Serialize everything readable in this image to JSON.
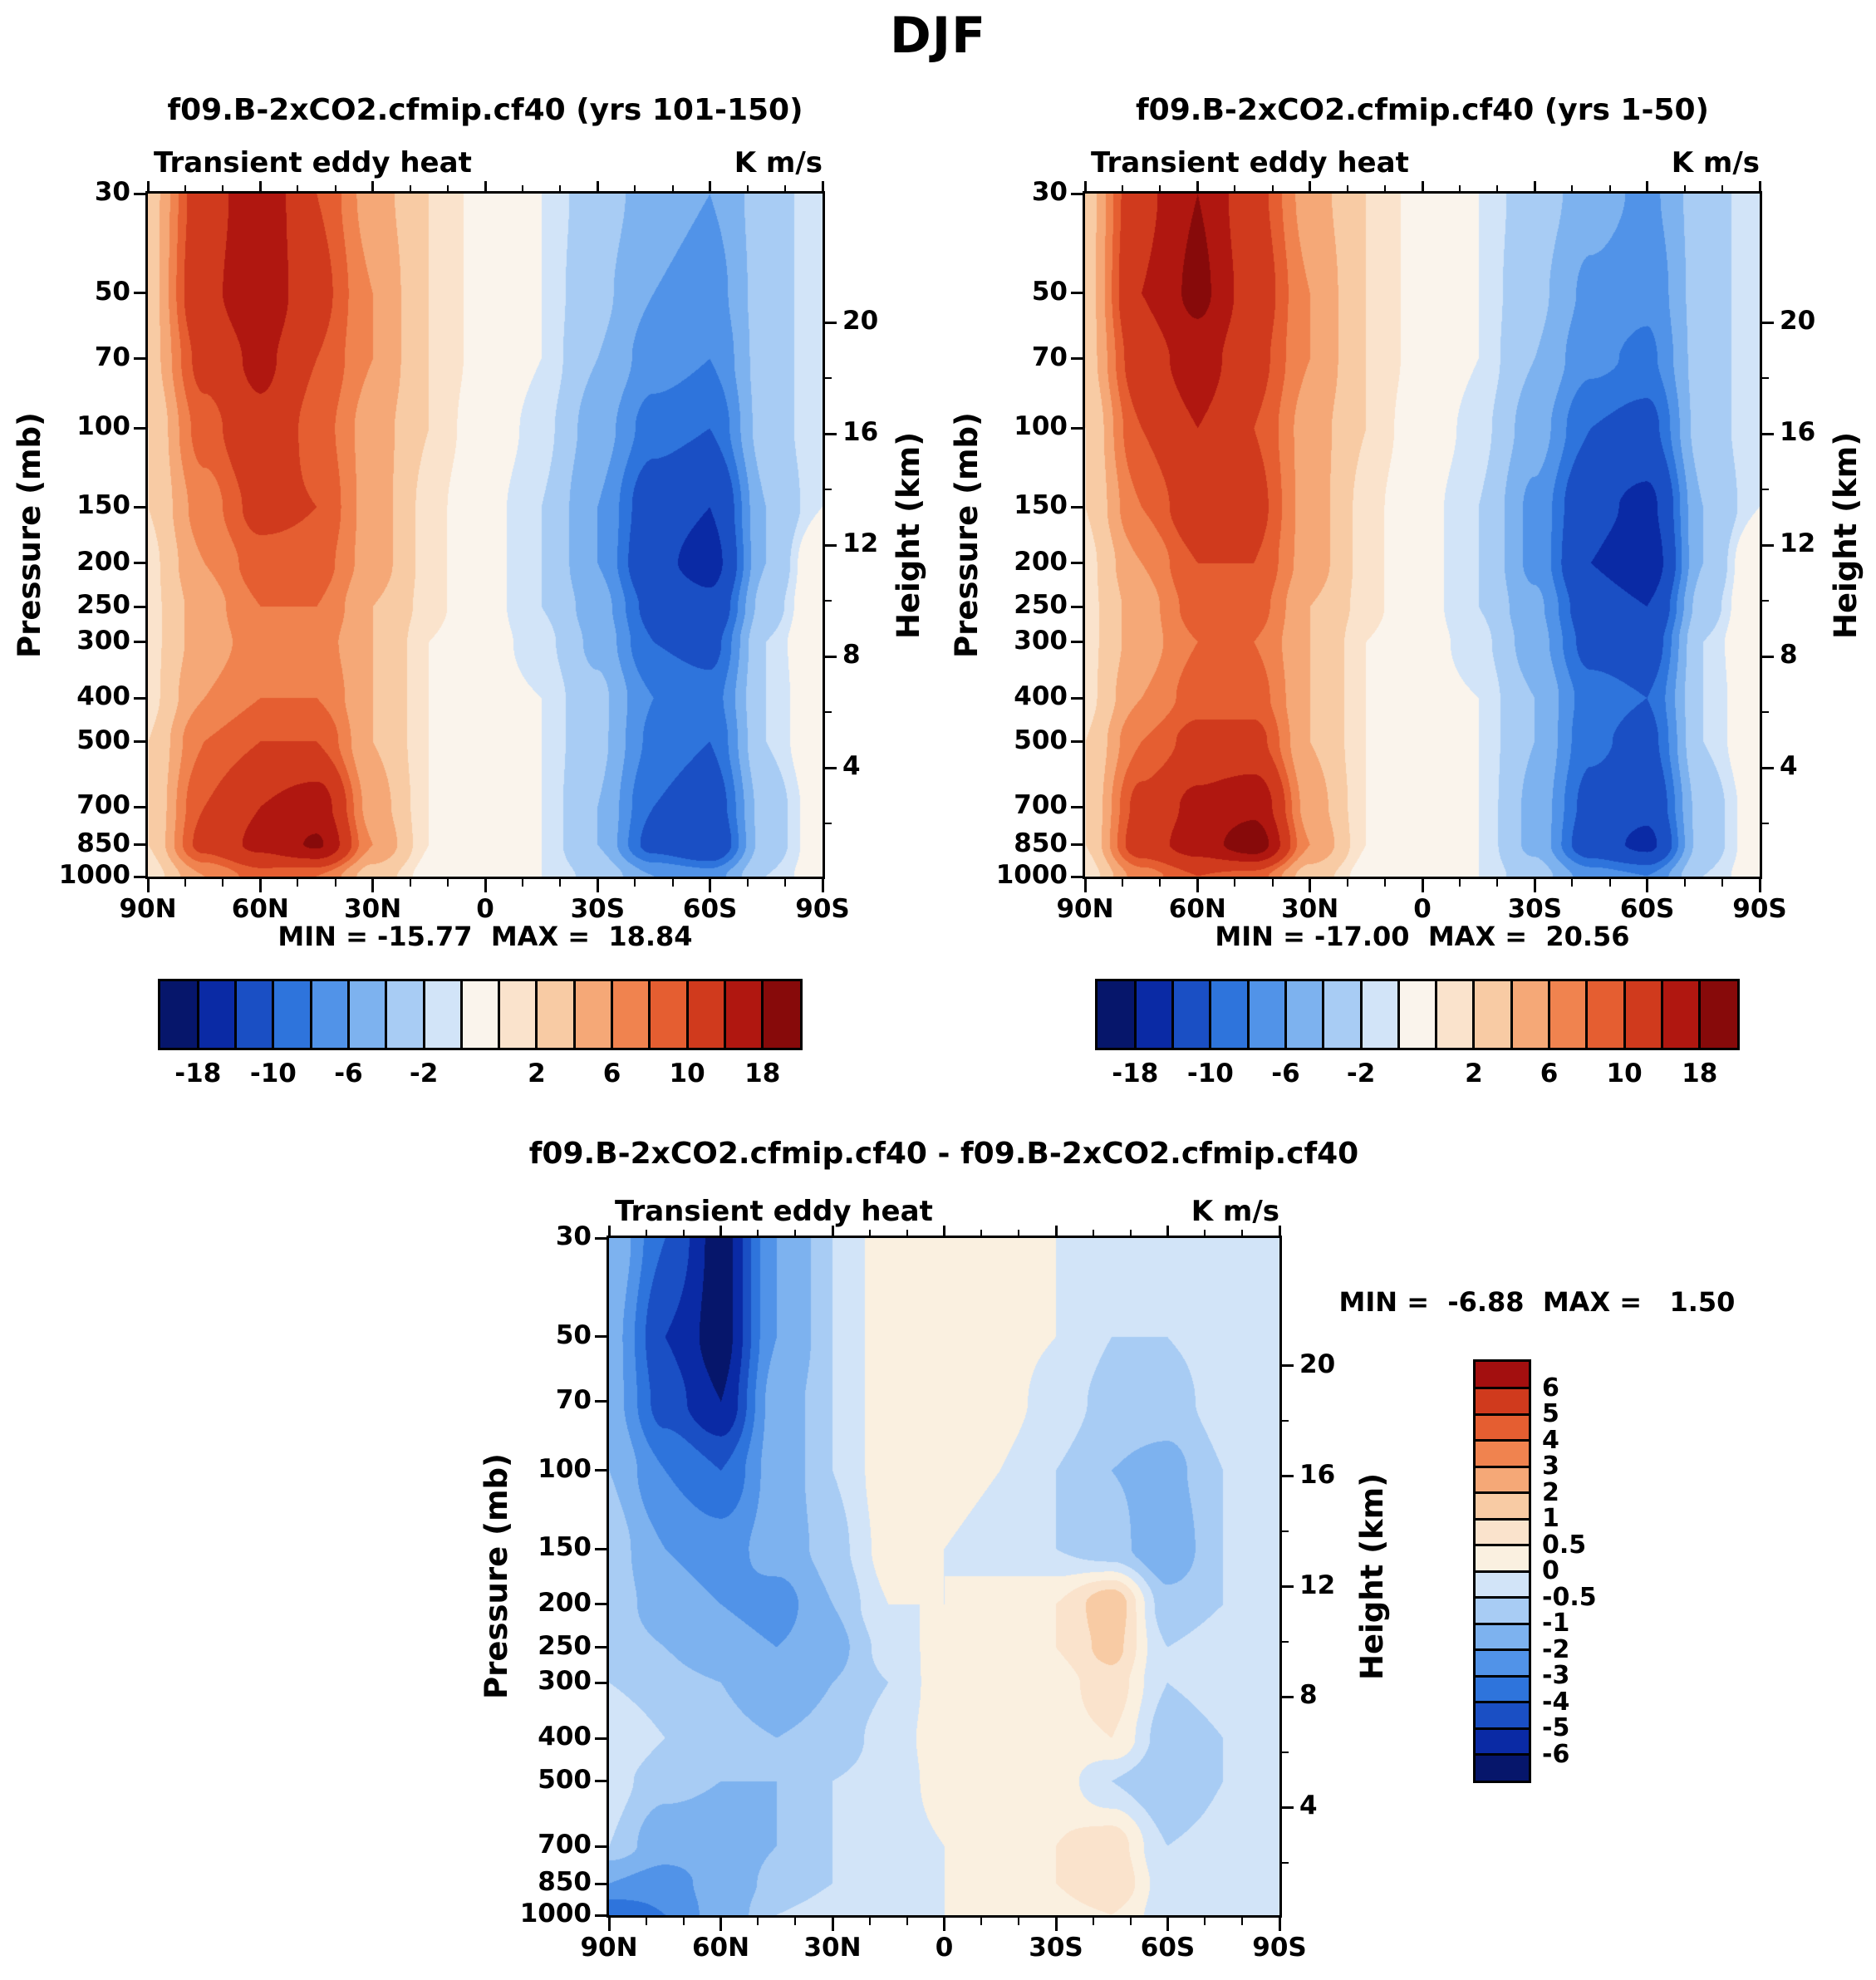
{
  "page": {
    "title": "DJF"
  },
  "panels": [
    {
      "title": "f09.B-2xCO2.cfmip.cf40 (yrs 101-150)",
      "field_label": "Transient eddy heat",
      "units": "K m/s",
      "stats": "MIN = -15.77  MAX =  18.84"
    },
    {
      "title": "f09.B-2xCO2.cfmip.cf40 (yrs 1-50)",
      "field_label": "Transient eddy heat",
      "units": "K m/s",
      "stats": "MIN = -17.00  MAX =  20.56"
    },
    {
      "title": "f09.B-2xCO2.cfmip.cf40 - f09.B-2xCO2.cfmip.cf40",
      "field_label": "Transient eddy heat",
      "units": "K m/s",
      "stats": "MIN =  -6.88  MAX =   1.50"
    }
  ],
  "axes": {
    "pressure_label": "Pressure (mb)",
    "height_label": "Height (km)",
    "pressure_ticks": [
      30,
      50,
      70,
      100,
      150,
      200,
      250,
      300,
      400,
      500,
      700,
      850,
      1000
    ],
    "height_ticks": [
      20,
      16,
      12,
      8,
      4
    ],
    "height_minor_ticks": [
      18,
      14,
      10,
      6,
      2
    ],
    "lat_tick_labels": [
      "90N",
      "60N",
      "30N",
      "0",
      "30S",
      "60S",
      "90S"
    ],
    "lat_tick_values": [
      90,
      60,
      30,
      0,
      -30,
      -60,
      -90
    ]
  },
  "palettes": {
    "main": {
      "levels": [
        -18,
        -14,
        -10,
        -8,
        -6,
        -4,
        -2,
        -1,
        1,
        2,
        4,
        6,
        8,
        10,
        14,
        18
      ],
      "colors": [
        "#06166B",
        "#0A2AA5",
        "#1A4FC4",
        "#2E74DC",
        "#5193E8",
        "#7DB2EF",
        "#A8CCF4",
        "#D2E4F8",
        "#FAF4EC",
        "#FAE3CC",
        "#F8CBA4",
        "#F5A877",
        "#F0834F",
        "#E55E31",
        "#D03A1D",
        "#B01710",
        "#870A0A"
      ],
      "bar_labels": [
        "-18",
        "-10",
        "-6",
        "-2",
        "2",
        "6",
        "10",
        "18"
      ],
      "bar_label_cells": [
        1,
        3,
        5,
        7,
        10,
        12,
        14,
        16
      ]
    },
    "diff": {
      "levels": [
        -6,
        -5,
        -4,
        -3,
        -2,
        -1,
        -0.5,
        0,
        0.5,
        1,
        2,
        3,
        4,
        5,
        6
      ],
      "colors": [
        "#06166B",
        "#0A2AA5",
        "#1A4FC4",
        "#2E74DC",
        "#5193E8",
        "#7DB2EF",
        "#A8CCF4",
        "#D2E4F8",
        "#FAF0E0",
        "#FAE3CC",
        "#F8CBA4",
        "#F5A877",
        "#F0834F",
        "#E55E31",
        "#D03A1D",
        "#A30F0F"
      ],
      "bar_labels": [
        "6",
        "5",
        "4",
        "3",
        "2",
        "1",
        "0.5",
        "0",
        "-0.5",
        "-1",
        "-2",
        "-3",
        "-4",
        "-5",
        "-6"
      ]
    }
  },
  "chart_data": [
    {
      "type": "heatmap",
      "title": "f09.B-2xCO2.cfmip.cf40 (yrs 101-150)",
      "field": "Transient eddy heat",
      "units": "K m/s",
      "min": -15.77,
      "max": 18.84,
      "palette": "main",
      "x_lats": [
        90,
        75,
        60,
        45,
        30,
        15,
        0,
        -15,
        -30,
        -45,
        -60,
        -75,
        -90
      ],
      "y_pressure_mb": [
        30,
        50,
        70,
        100,
        150,
        200,
        250,
        300,
        400,
        500,
        700,
        850,
        1000
      ],
      "values": [
        [
          3,
          12,
          17,
          10,
          5,
          2,
          0.5,
          -1,
          -3,
          -5,
          -6,
          -3,
          -1
        ],
        [
          3,
          13,
          17,
          11,
          6,
          2,
          0.5,
          -1,
          -3.5,
          -6,
          -7,
          -3,
          -1
        ],
        [
          3,
          11,
          15,
          10,
          6,
          2,
          0.5,
          -1,
          -4,
          -7,
          -8,
          -3,
          -1
        ],
        [
          2,
          9,
          13,
          9,
          5,
          2,
          0,
          -1.5,
          -5,
          -9,
          -10,
          -3,
          -1
        ],
        [
          2,
          7,
          11,
          10,
          5,
          1.5,
          -0.5,
          -2,
          -6,
          -12,
          -14,
          -4,
          -1
        ],
        [
          1.5,
          6,
          9,
          9,
          5,
          1.5,
          -0.5,
          -2,
          -6,
          -13,
          -15.5,
          -4,
          1
        ],
        [
          1.5,
          5,
          8,
          8,
          4,
          1.5,
          -0.5,
          -2,
          -5,
          -11,
          -13,
          -3,
          1
        ],
        [
          1.5,
          5,
          7,
          7,
          4,
          1,
          -0.5,
          -1.5,
          -4.5,
          -10,
          -11,
          -2,
          1
        ],
        [
          1.5,
          6,
          8,
          8,
          4,
          1,
          -0.5,
          -1,
          -3.5,
          -8,
          -9,
          -2,
          0.5
        ],
        [
          2,
          8,
          10,
          10,
          4,
          1,
          -0.5,
          -1,
          -3.5,
          -8.5,
          -10,
          -2,
          0.5
        ],
        [
          2,
          10,
          14,
          16,
          5,
          1,
          -0.5,
          -1,
          -4,
          -10,
          -12,
          -3,
          0
        ],
        [
          2,
          11,
          15,
          18.5,
          6,
          1,
          -0.5,
          -1,
          -4,
          -11,
          -13.5,
          -3,
          0
        ],
        [
          1,
          6,
          9,
          8,
          3,
          0.5,
          -0.5,
          -1,
          -2.5,
          -6,
          -7,
          -2,
          0
        ]
      ]
    },
    {
      "type": "heatmap",
      "title": "f09.B-2xCO2.cfmip.cf40 (yrs 1-50)",
      "field": "Transient eddy heat",
      "units": "K m/s",
      "min": -17.0,
      "max": 20.56,
      "palette": "main",
      "x_lats": [
        90,
        75,
        60,
        45,
        30,
        15,
        0,
        -15,
        -30,
        -45,
        -60,
        -75,
        -90
      ],
      "y_pressure_mb": [
        30,
        50,
        70,
        100,
        150,
        200,
        250,
        300,
        400,
        500,
        700,
        850,
        1000
      ],
      "values": [
        [
          3,
          13,
          18,
          11,
          5,
          2,
          0.5,
          -1,
          -3,
          -5,
          -6.5,
          -3,
          -1
        ],
        [
          3,
          14,
          19,
          12,
          6,
          2,
          0.5,
          -1,
          -3.5,
          -6.5,
          -7.5,
          -3,
          -1
        ],
        [
          3,
          12,
          16,
          11,
          6,
          2,
          0.5,
          -1,
          -4,
          -7.5,
          -8.5,
          -3,
          -1
        ],
        [
          2,
          10,
          14,
          10,
          5,
          2,
          0,
          -1.5,
          -5,
          -10,
          -11,
          -3,
          -1
        ],
        [
          2,
          8,
          12,
          11,
          5,
          1.5,
          -0.5,
          -2,
          -6.5,
          -13,
          -15,
          -4,
          -1
        ],
        [
          1.5,
          6,
          10,
          10,
          5,
          1.5,
          -0.5,
          -2,
          -6.5,
          -14,
          -16.5,
          -4,
          1
        ],
        [
          1.5,
          5,
          9,
          9,
          4,
          1.5,
          -0.5,
          -2,
          -5.5,
          -12,
          -14,
          -3,
          1
        ],
        [
          1.5,
          5,
          8,
          8,
          4,
          1,
          -0.5,
          -1.5,
          -5,
          -11,
          -12,
          -2,
          1
        ],
        [
          1.5,
          6,
          9,
          9,
          4,
          1,
          -0.5,
          -1,
          -4,
          -9,
          -10,
          -2,
          0.5
        ],
        [
          2,
          8,
          11,
          11,
          4,
          1,
          -0.5,
          -1,
          -4,
          -9.5,
          -11,
          -2,
          0.5
        ],
        [
          2,
          11,
          15,
          17,
          5,
          1,
          -0.5,
          -1,
          -4.5,
          -11,
          -13,
          -3,
          0
        ],
        [
          2,
          12,
          16,
          20.5,
          6,
          1,
          -0.5,
          -1,
          -4.5,
          -12,
          -15,
          -3,
          0
        ],
        [
          1,
          7,
          10,
          9,
          3,
          0.5,
          -0.5,
          -1,
          -3,
          -7,
          -8,
          -2,
          0
        ]
      ]
    },
    {
      "type": "heatmap",
      "title": "f09.B-2xCO2.cfmip.cf40 - f09.B-2xCO2.cfmip.cf40",
      "field": "Transient eddy heat",
      "units": "K m/s",
      "min": -6.88,
      "max": 1.5,
      "palette": "diff",
      "x_lats": [
        90,
        75,
        60,
        45,
        30,
        15,
        0,
        -15,
        -30,
        -45,
        -60,
        -75,
        -90
      ],
      "y_pressure_mb": [
        30,
        50,
        70,
        100,
        150,
        200,
        250,
        300,
        400,
        500,
        700,
        850,
        1000
      ],
      "values": [
        [
          -1,
          -4,
          -6.5,
          -2,
          -0.5,
          0.3,
          0.3,
          0.2,
          0,
          -0.3,
          -0.5,
          -0.3,
          0
        ],
        [
          -1.5,
          -5,
          -6.5,
          -2,
          -0.5,
          0.3,
          0.3,
          0.2,
          0,
          -0.5,
          -0.5,
          -0.3,
          0
        ],
        [
          -1.5,
          -4.5,
          -6,
          -1.5,
          -0.5,
          0.3,
          0.3,
          0.2,
          -0.2,
          -0.7,
          -0.7,
          -0.3,
          0
        ],
        [
          -1,
          -3,
          -4,
          -1.5,
          -0.5,
          0.3,
          0.2,
          0,
          -0.5,
          -1,
          -1.2,
          -0.5,
          0
        ],
        [
          -0.5,
          -2,
          -2.5,
          -1.5,
          -0.7,
          0.2,
          0,
          -0.2,
          -0.5,
          -0.8,
          -1.5,
          -0.5,
          0
        ],
        [
          -0.5,
          -1.5,
          -2,
          -2.5,
          -1,
          0,
          0,
          0.2,
          0.5,
          1.4,
          -0.8,
          -0.5,
          -0.3
        ],
        [
          -0.5,
          -1,
          -1.5,
          -2,
          -1.2,
          -0.3,
          0.2,
          0.3,
          0.5,
          1.2,
          -0.5,
          -0.3,
          -0.3
        ],
        [
          -0.5,
          -0.8,
          -1,
          -1.5,
          -1,
          -0.5,
          0.3,
          0.3,
          0.3,
          0.8,
          -0.5,
          -0.3,
          -0.3
        ],
        [
          0,
          -0.5,
          -0.8,
          -1,
          -0.8,
          -0.3,
          0.3,
          0.3,
          0.3,
          0.5,
          -0.8,
          -0.5,
          -0.3
        ],
        [
          -0.3,
          -0.8,
          -1,
          -1,
          -0.5,
          -0.3,
          0.2,
          0.3,
          0.3,
          -0.5,
          -1,
          -0.5,
          -0.3
        ],
        [
          -0.5,
          -1.5,
          -1.5,
          -1,
          -0.5,
          -0.3,
          0,
          0.3,
          0.5,
          0.8,
          -0.5,
          -0.3,
          0
        ],
        [
          -2,
          -2.5,
          -1.5,
          -0.8,
          -0.5,
          -0.3,
          0,
          0.3,
          0.5,
          1.0,
          -0.3,
          -0.3,
          0
        ],
        [
          -4,
          -3,
          -1.5,
          -0.5,
          -0.3,
          -0.2,
          0,
          0.2,
          0.3,
          0.5,
          -0.3,
          -0.2,
          0
        ]
      ]
    }
  ]
}
